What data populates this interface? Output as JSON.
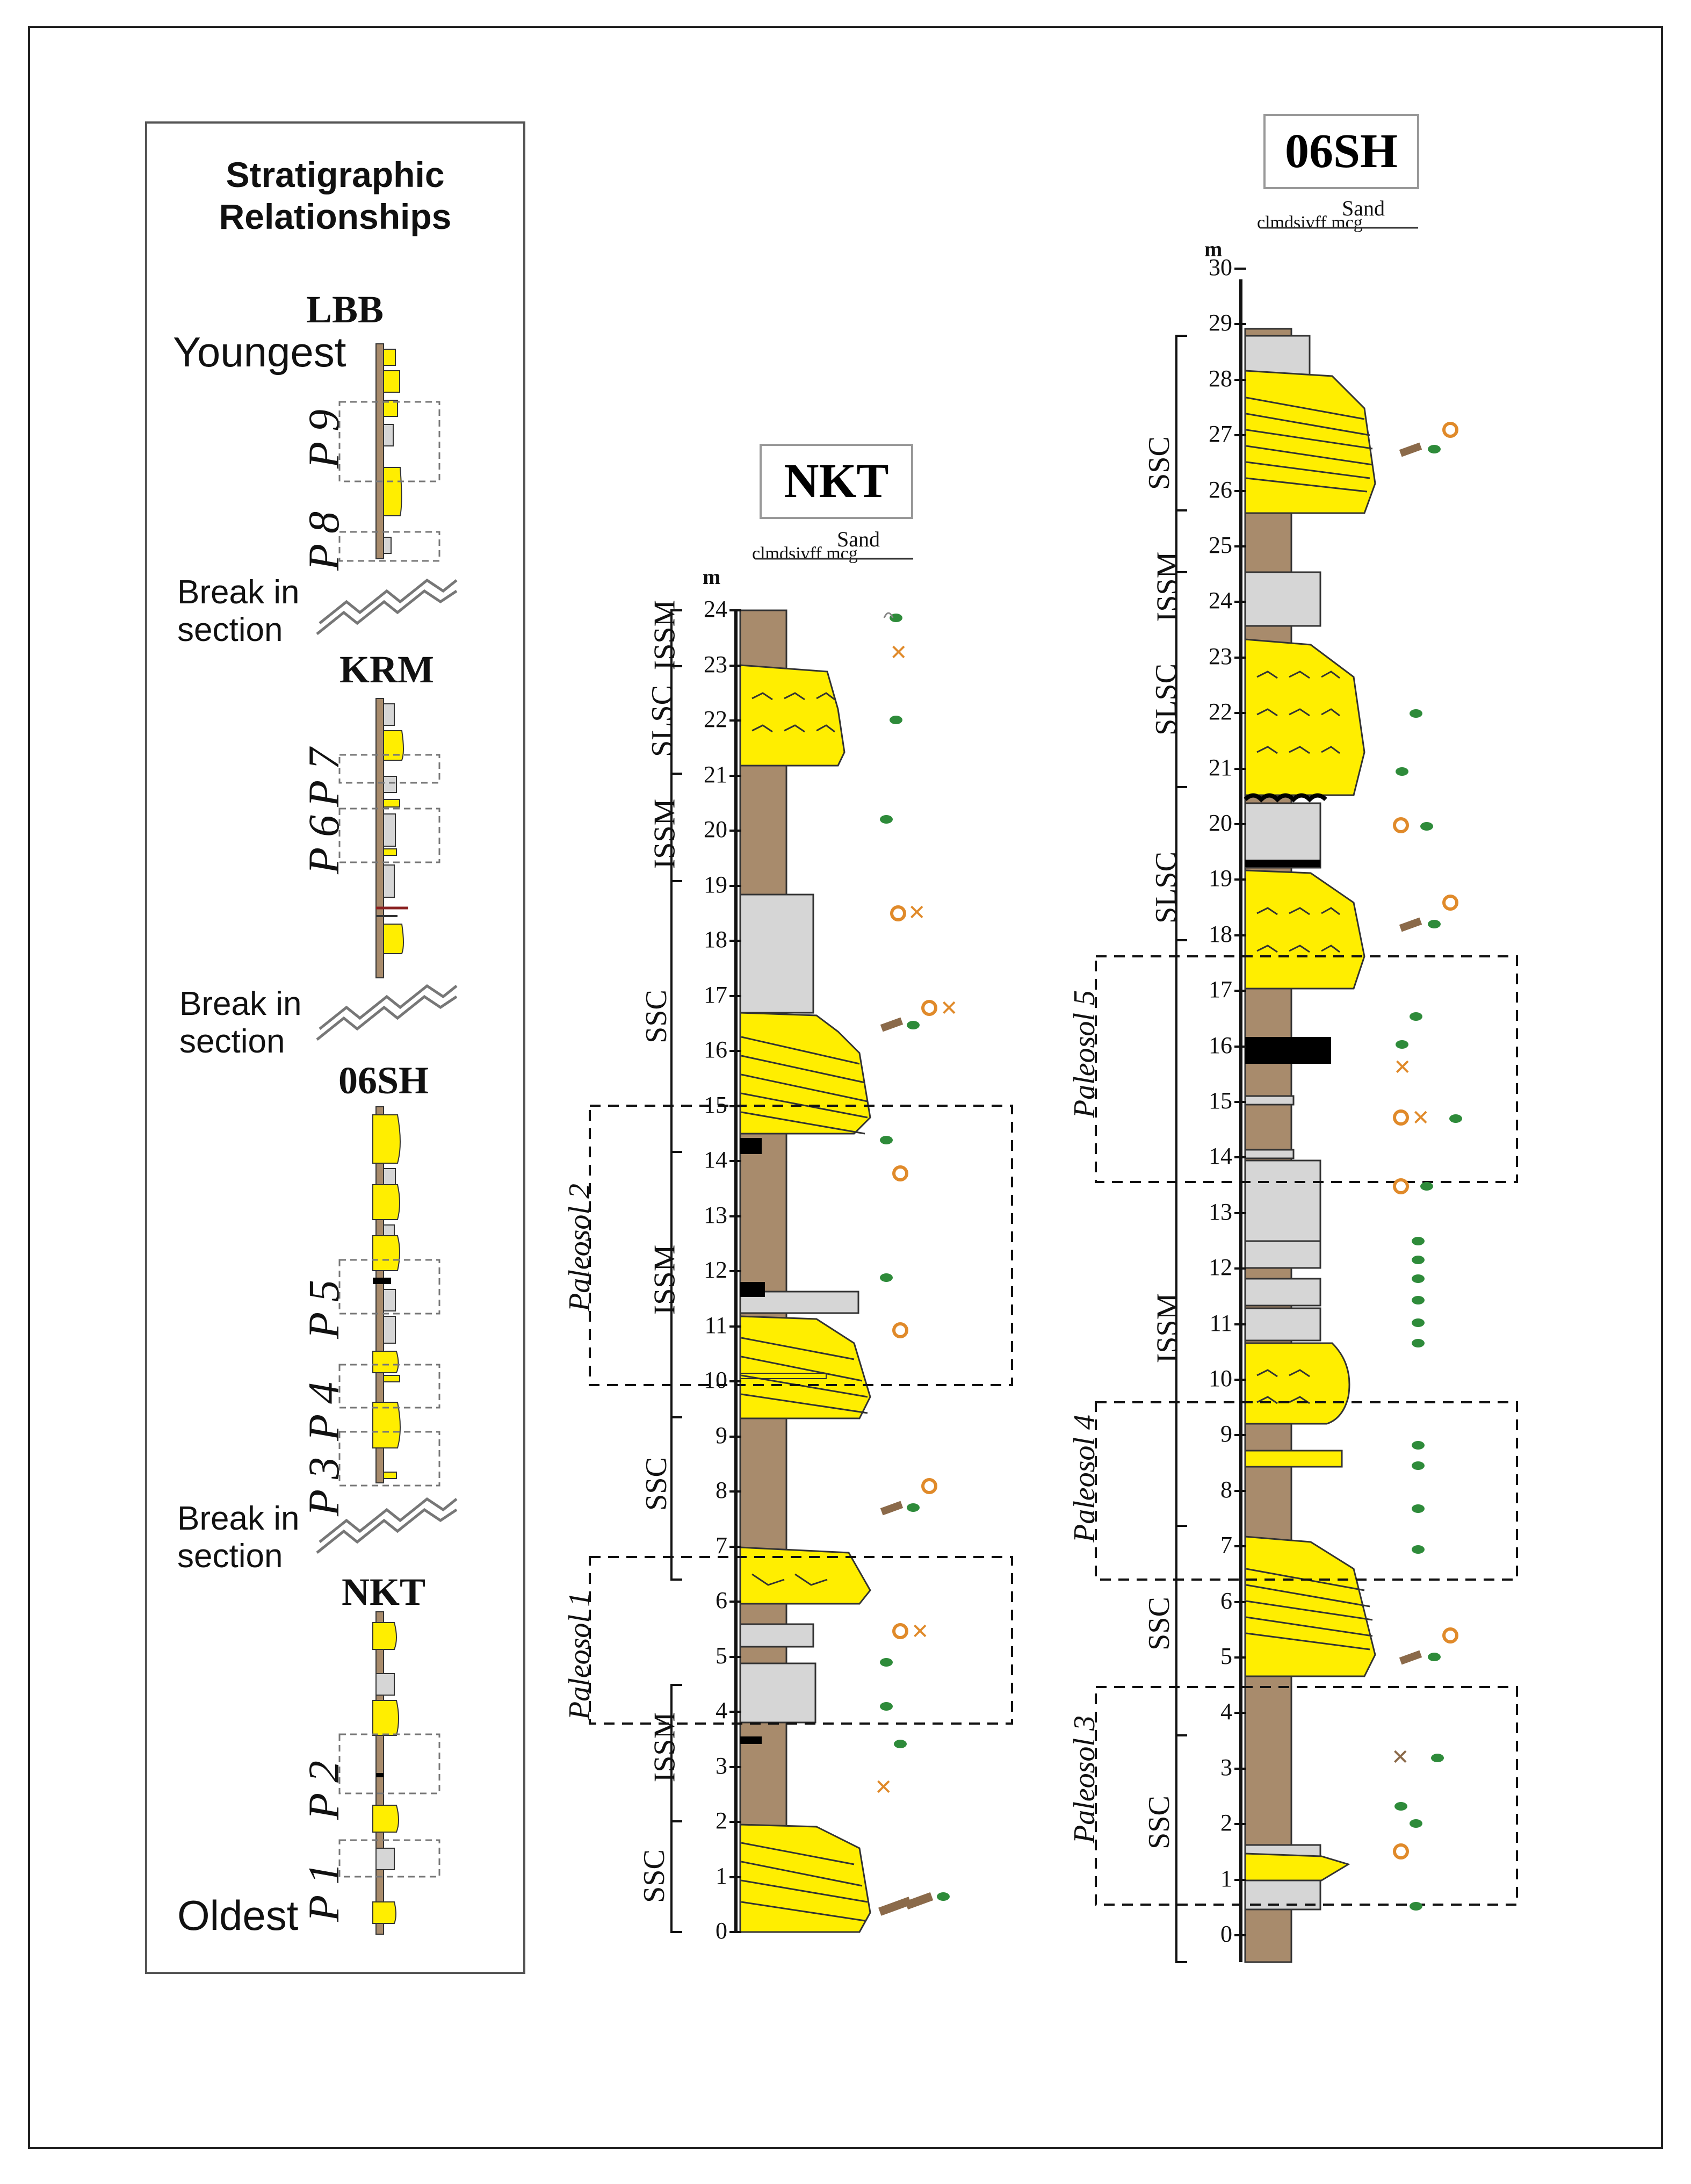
{
  "legend": {
    "title_line1": "Stratigraphic",
    "title_line2": "Relationships",
    "youngest": "Youngest",
    "oldest": "Oldest",
    "break_line1": "Break in",
    "break_line2": "section",
    "locations": [
      "LBB",
      "KRM",
      "06SH",
      "NKT"
    ],
    "paleosol_tags": [
      "P 9",
      "P 8",
      "P 7",
      "P 6",
      "P 5",
      "P 4",
      "P 3",
      "P 2",
      "P 1"
    ]
  },
  "nkt": {
    "title": "NKT",
    "unit": "m",
    "grain_label": "Sand",
    "grain_scale": "clmdsivff mcg",
    "ticks": [
      "0",
      "1",
      "2",
      "3",
      "4",
      "5",
      "6",
      "7",
      "8",
      "9",
      "10",
      "11",
      "12",
      "13",
      "14",
      "15",
      "16",
      "17",
      "18",
      "19",
      "20",
      "21",
      "22",
      "23",
      "24"
    ],
    "facies": [
      "SSC",
      "ISSM",
      "SSC",
      "ISSM",
      "SSC",
      "ISSM",
      "SLSC",
      "ISSM"
    ],
    "paleosols": [
      "Paleosol 1",
      "Paleosol 2"
    ]
  },
  "sh06": {
    "title": "06SH",
    "unit": "m",
    "grain_label": "Sand",
    "grain_scale": "clmdsivff mcg",
    "ticks": [
      "0",
      "1",
      "2",
      "3",
      "4",
      "5",
      "6",
      "7",
      "8",
      "9",
      "10",
      "11",
      "12",
      "13",
      "14",
      "15",
      "16",
      "17",
      "18",
      "19",
      "20",
      "21",
      "22",
      "23",
      "24",
      "25",
      "26",
      "27",
      "28",
      "29",
      "30"
    ],
    "facies": [
      "SSC",
      "SSC",
      "ISSM",
      "SLSC",
      "SLSC",
      "ISSM",
      "SSC"
    ],
    "paleosols": [
      "Paleosol 3",
      "Paleosol 4",
      "Paleosol 5"
    ]
  },
  "colors": {
    "sand": "#ffee00",
    "mud": "#a88b6c",
    "grey": "#d6d6d6",
    "coal": "#000000",
    "plant": "#2e8b3a",
    "nodule": "#e08a2a"
  }
}
